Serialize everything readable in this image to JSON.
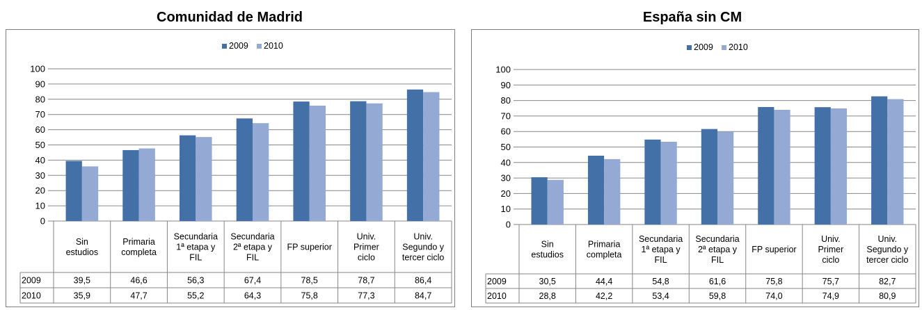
{
  "chart_data": [
    {
      "type": "bar",
      "title": "Comunidad de Madrid",
      "categories": [
        [
          "Sin",
          "estudios"
        ],
        [
          "Primaria",
          "completa"
        ],
        [
          "Secundaria",
          "1ª etapa y",
          "FIL"
        ],
        [
          "Secundaria",
          "2ª etapa y",
          "FIL"
        ],
        [
          "FP superior"
        ],
        [
          "Univ.",
          "Primer",
          "ciclo"
        ],
        [
          "Univ.",
          "Segundo y",
          "tercer ciclo"
        ]
      ],
      "series": [
        {
          "name": "2009",
          "values": [
            39.5,
            46.6,
            56.3,
            67.4,
            78.5,
            78.7,
            86.4
          ],
          "labels": [
            "39,5",
            "46,6",
            "56,3",
            "67,4",
            "78,5",
            "78,7",
            "86,4"
          ]
        },
        {
          "name": "2010",
          "values": [
            35.9,
            47.7,
            55.2,
            64.3,
            75.8,
            77.3,
            84.7
          ],
          "labels": [
            "35,9",
            "47,7",
            "55,2",
            "64,3",
            "75,8",
            "77,3",
            "84,7"
          ]
        }
      ],
      "ylim": [
        0,
        100
      ],
      "yticks": [
        0,
        10,
        20,
        30,
        40,
        50,
        60,
        70,
        80,
        90,
        100
      ],
      "legend": "top-center",
      "grid": true,
      "data_table": true
    },
    {
      "type": "bar",
      "title": "España sin CM",
      "categories": [
        [
          "Sin",
          "estudios"
        ],
        [
          "Primaria",
          "completa"
        ],
        [
          "Secundaria",
          "1ª etapa y",
          "FIL"
        ],
        [
          "Secundaria",
          "2ª etapa y",
          "FIL"
        ],
        [
          "FP superior"
        ],
        [
          "Univ.",
          "Primer",
          "ciclo"
        ],
        [
          "Univ.",
          "Segundo y",
          "tercer ciclo"
        ]
      ],
      "series": [
        {
          "name": "2009",
          "values": [
            30.5,
            44.4,
            54.8,
            61.6,
            75.8,
            75.7,
            82.7
          ],
          "labels": [
            "30,5",
            "44,4",
            "54,8",
            "61,6",
            "75,8",
            "75,7",
            "82,7"
          ]
        },
        {
          "name": "2010",
          "values": [
            28.8,
            42.2,
            53.4,
            59.8,
            74.0,
            74.9,
            80.9
          ],
          "labels": [
            "28,8",
            "42,2",
            "53,4",
            "59,8",
            "74,0",
            "74,9",
            "80,9"
          ]
        }
      ],
      "ylim": [
        0,
        100
      ],
      "yticks": [
        0,
        10,
        20,
        30,
        40,
        50,
        60,
        70,
        80,
        90,
        100
      ],
      "legend": "top-center",
      "grid": true,
      "data_table": true
    }
  ],
  "colors": {
    "series_2009": "#4470A8",
    "series_2010": "#94A9D3",
    "gridline": "#868686",
    "frame": "#7f7f7f"
  }
}
